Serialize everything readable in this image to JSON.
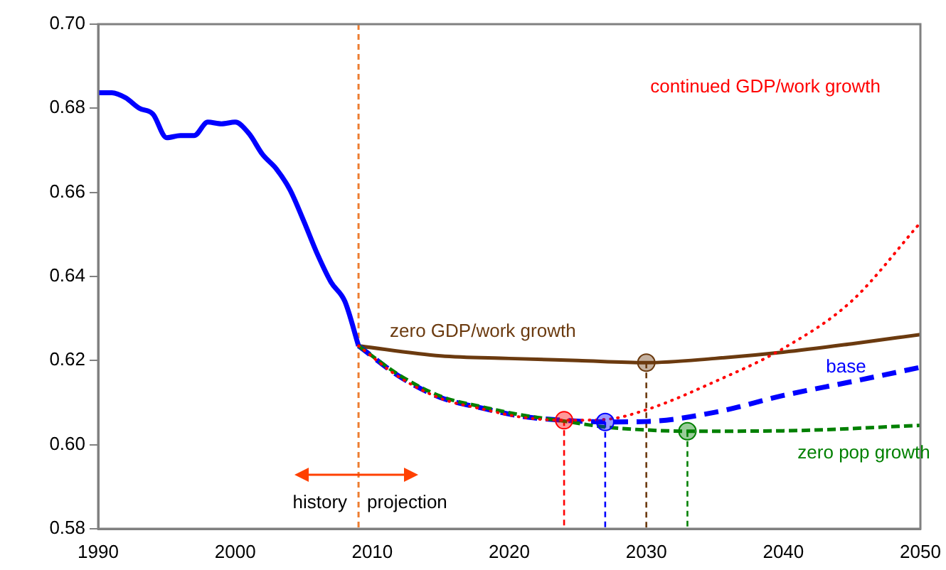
{
  "chart_data": {
    "type": "line",
    "xlim": [
      1990,
      2050
    ],
    "xticks": [
      1990,
      2000,
      2010,
      2020,
      2030,
      2040,
      2050
    ],
    "ylim": [
      0.58,
      0.7
    ],
    "yticks": [
      {
        "value": 0.58,
        "label": "0.58"
      },
      {
        "value": 0.6,
        "label": "0.60"
      },
      {
        "value": 0.62,
        "label": "0.62"
      },
      {
        "value": 0.64,
        "label": "0.64"
      },
      {
        "value": 0.66,
        "label": "0.66"
      },
      {
        "value": 0.68,
        "label": "0.68"
      },
      {
        "value": 0.7,
        "label": "0.70"
      }
    ],
    "grid": false,
    "legend": false,
    "marker": "none",
    "series": [
      {
        "color": "#0000ff",
        "line_style": "solid",
        "x": [
          1990,
          1991,
          1992,
          1993,
          1994,
          1995,
          1996,
          1997,
          1998,
          1999,
          2000,
          2001,
          2002,
          2003,
          2004,
          2005,
          2006,
          2007,
          2008,
          2009
        ],
        "values": [
          0.6837,
          0.6837,
          0.6825,
          0.68,
          0.6786,
          0.673,
          0.6735,
          0.6735,
          0.6767,
          0.6763,
          0.6767,
          0.674,
          0.669,
          0.6656,
          0.6606,
          0.6532,
          0.6453,
          0.6386,
          0.6341,
          0.6235
        ]
      },
      {
        "name": "zero GDP/work growth",
        "color": "#6b3a0f",
        "line_style": "solid",
        "x": [
          2009,
          2015,
          2020,
          2025,
          2030,
          2035,
          2040,
          2045,
          2050
        ],
        "values": [
          0.6235,
          0.6211,
          0.6205,
          0.62,
          0.6195,
          0.6205,
          0.622,
          0.624,
          0.6262
        ]
      },
      {
        "name": "continued GDP/work growth",
        "color": "#ff0000",
        "line_style": "dotted",
        "x": [
          2009,
          2012,
          2015,
          2018,
          2021,
          2024,
          2027,
          2030,
          2035,
          2040,
          2045,
          2050
        ],
        "values": [
          0.6235,
          0.616,
          0.611,
          0.6085,
          0.6065,
          0.6058,
          0.606,
          0.6083,
          0.615,
          0.6229,
          0.6342,
          0.6528
        ]
      },
      {
        "name": "base",
        "color": "#0000ff",
        "line_style": "dashed",
        "x": [
          2009,
          2012,
          2015,
          2018,
          2021,
          2024,
          2027,
          2030,
          2035,
          2040,
          2045,
          2050
        ],
        "values": [
          0.6235,
          0.6162,
          0.6112,
          0.6087,
          0.6067,
          0.6058,
          0.6054,
          0.6055,
          0.6077,
          0.6117,
          0.615,
          0.6184
        ]
      },
      {
        "name": "zero pop growth",
        "color": "#008000",
        "line_style": "dashed",
        "x": [
          2009,
          2012,
          2015,
          2018,
          2021,
          2024,
          2027,
          2030,
          2033,
          2040,
          2050
        ],
        "values": [
          0.6235,
          0.6165,
          0.6115,
          0.609,
          0.607,
          0.6056,
          0.6042,
          0.6035,
          0.6032,
          0.6033,
          0.6046
        ]
      },
      {
        "type": "lollipop",
        "line_style": "dashed",
        "marker": "circle",
        "x": [
          2024,
          2027,
          2030,
          2033
        ],
        "values": [
          0.6058,
          0.6054,
          0.6195,
          0.6032
        ],
        "colors": [
          "#ff0000",
          "#0000ff",
          "#6b3a0f",
          "#008000"
        ]
      }
    ],
    "ref_lines": [
      {
        "axis": "x",
        "value": 2009,
        "color": "#ed7d31",
        "line_style": "dashed"
      }
    ],
    "annotations": [
      "history",
      "projection"
    ]
  }
}
